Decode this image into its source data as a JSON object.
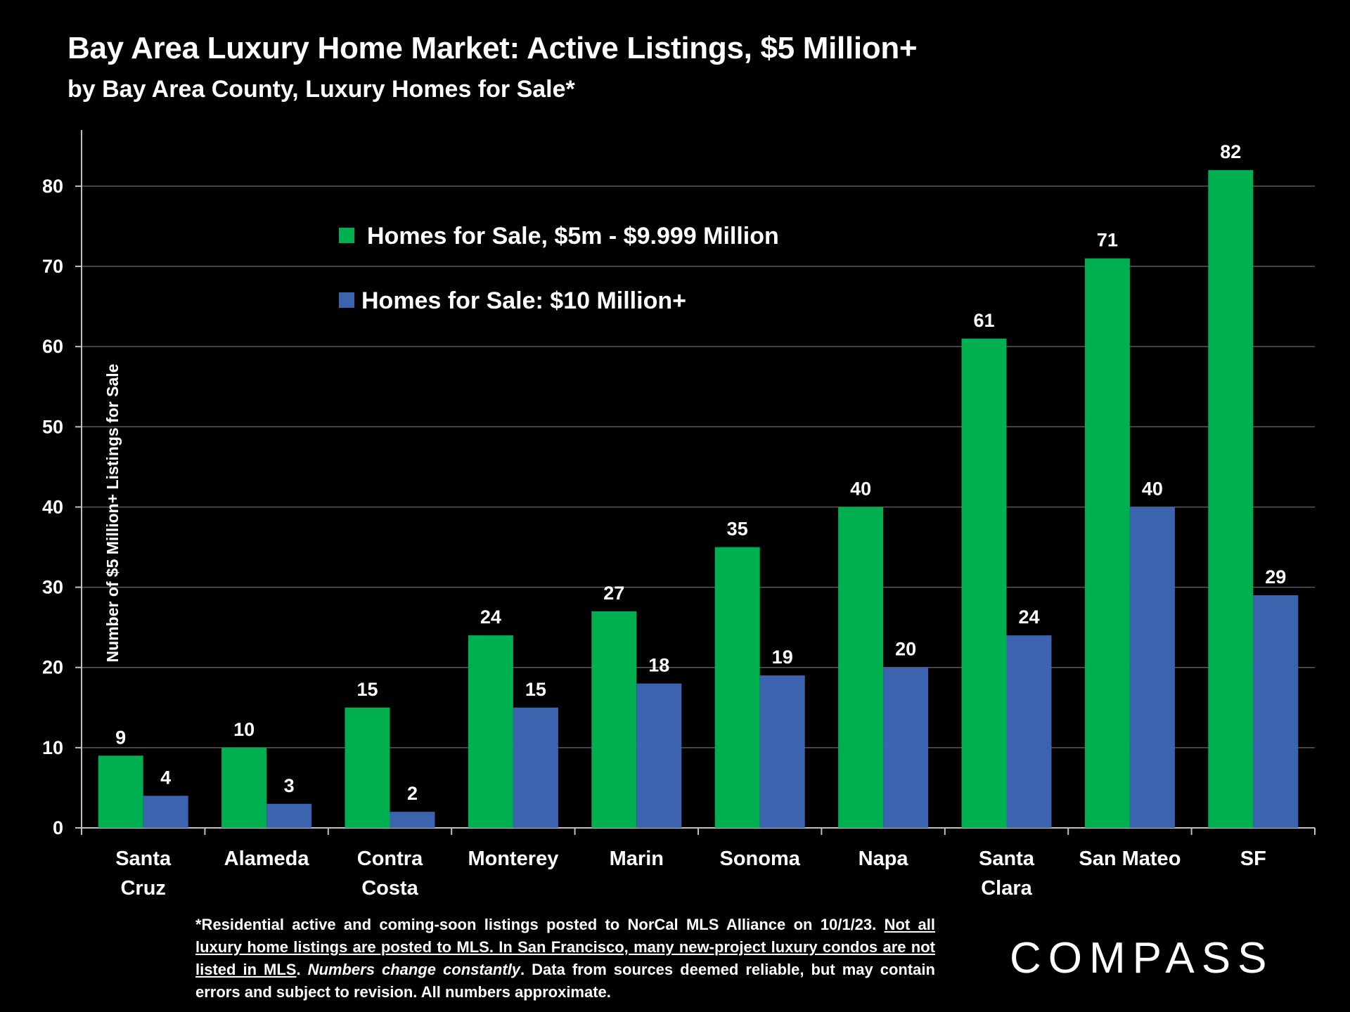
{
  "header": {
    "title": "Bay Area Luxury Home Market: Active Listings, $5 Million+",
    "subtitle": "by Bay Area County, Luxury Homes for Sale*"
  },
  "chart_data": {
    "type": "bar",
    "categories": [
      [
        "Santa",
        "Cruz"
      ],
      [
        "Alameda"
      ],
      [
        "Contra",
        "Costa"
      ],
      [
        "Monterey"
      ],
      [
        "Marin"
      ],
      [
        "Sonoma"
      ],
      [
        "Napa"
      ],
      [
        "Santa",
        "Clara"
      ],
      [
        "San Mateo"
      ],
      [
        "SF"
      ]
    ],
    "series": [
      {
        "name": "Homes for Sale, $5m - $9.999 Million",
        "color": "#00B050",
        "values": [
          9,
          10,
          15,
          24,
          27,
          35,
          40,
          61,
          71,
          82
        ]
      },
      {
        "name": "Homes for Sale:  $10 Million+",
        "color": "#3C64AE",
        "values": [
          4,
          3,
          2,
          15,
          18,
          19,
          20,
          24,
          40,
          29
        ]
      }
    ],
    "ylabel": "Number of $5 Million+ Listings for Sale",
    "xlabel": "",
    "ylim": [
      0,
      87
    ],
    "yticks": [
      0,
      10,
      20,
      30,
      40,
      50,
      60,
      70,
      80
    ],
    "grid": true,
    "legend_position": "top-left"
  },
  "footnote": {
    "part1": "*Residential active and coming-soon listings posted to NorCal MLS Alliance on 10/1/23. ",
    "underlined": "Not all luxury home listings are posted to MLS. In San Francisco, many new-project luxury condos are not listed in MLS",
    "part2": ". ",
    "italic": "Numbers change constantly",
    "part3": ". Data from sources deemed reliable, but may contain errors and subject to revision. All numbers approximate."
  },
  "brand": {
    "logo": "COMPASS"
  },
  "colors": {
    "background": "#000000",
    "text": "#FFFFFF",
    "grid": "#5A5A5A"
  }
}
